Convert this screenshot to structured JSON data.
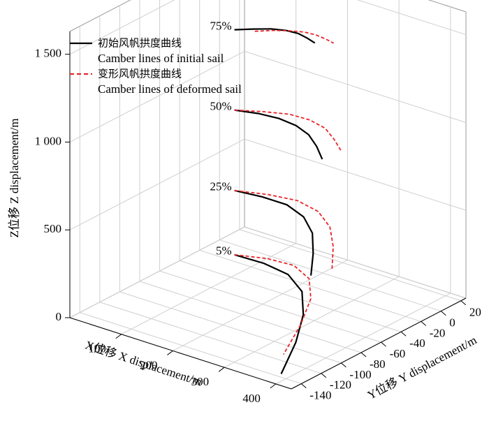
{
  "chart_data": {
    "type": "line3d",
    "xlabel": "X位移 X displacement/m",
    "ylabel": "Y位移 Y displacement/m",
    "zlabel": "Z位移 Z displacement/m",
    "xlim": [
      0,
      430
    ],
    "ylim": [
      -150,
      25
    ],
    "zlim": [
      0,
      1630
    ],
    "xticks": [
      100,
      200,
      300,
      400
    ],
    "yticks": [
      20,
      0,
      -20,
      -40,
      -60,
      -80,
      -100,
      -120,
      -140
    ],
    "zticks": [
      0,
      500,
      {
        "value": 1000,
        "label": "1 000"
      },
      {
        "value": 1500,
        "label": "1 500"
      }
    ],
    "grid": true,
    "level_labels": [
      "5%",
      "25%",
      "50%",
      "75%"
    ],
    "series": [
      {
        "name": "初始风帆拱度曲线",
        "name_en": "Camber lines of initial sail",
        "color": "#000000",
        "dashed": false,
        "x": [
          89,
          144,
          199,
          255,
          310,
          365,
          420,
          null,
          89,
          137,
          185,
          233,
          281,
          329,
          377,
          null,
          89,
          126,
          162,
          199,
          235,
          272,
          308,
          null,
          89,
          110,
          131,
          153,
          174,
          195,
          216
        ],
        "y": [
          -31,
          -30,
          -34,
          -49,
          -76,
          -112,
          -155,
          null,
          -31,
          -28,
          -28,
          -36,
          -52,
          -76,
          -103,
          null,
          -31,
          -26,
          -24,
          -26,
          -32,
          -43,
          -56,
          null,
          -31,
          -23,
          -16,
          -12,
          -11,
          -13,
          -16
        ],
        "z": [
          91,
          91,
          91,
          91,
          91,
          91,
          91,
          null,
          457,
          457,
          457,
          457,
          457,
          457,
          457,
          null,
          915,
          915,
          915,
          915,
          915,
          915,
          915,
          null,
          1372,
          1372,
          1372,
          1372,
          1372,
          1372,
          1372
        ]
      },
      {
        "name": "变形风帆拱度曲线",
        "name_en": "Camber lines of deformed sail",
        "color": "#e8262a",
        "dashed": true,
        "x": [
          89,
          137,
          185,
          234,
          282,
          330,
          378,
          null,
          89,
          139,
          188,
          238,
          288,
          337,
          387,
          null,
          89,
          127,
          164,
          202,
          240,
          277,
          315,
          null,
          117,
          137,
          158,
          178,
          198,
          219,
          239
        ],
        "y": [
          -31,
          -23,
          -21,
          -31,
          -54,
          -89,
          -131,
          null,
          -31,
          -23,
          -19,
          -24,
          -38,
          -60,
          -87,
          null,
          -31,
          -22,
          -15,
          -14,
          -18,
          -28,
          -40,
          null,
          -25,
          -17,
          -11,
          -7,
          -6,
          -7,
          -9
        ],
        "z": [
          91,
          91,
          91,
          91,
          91,
          91,
          91,
          null,
          457,
          457,
          457,
          457,
          457,
          457,
          457,
          null,
          915,
          915,
          915,
          915,
          915,
          915,
          915,
          null,
          1372,
          1372,
          1372,
          1372,
          1372,
          1372,
          1372
        ]
      }
    ]
  }
}
